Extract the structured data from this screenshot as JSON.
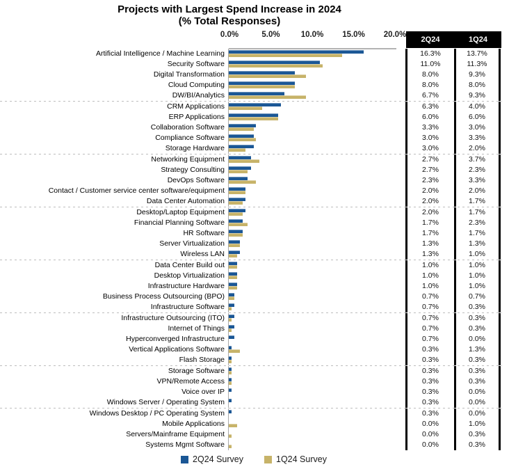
{
  "title": {
    "line1": "Projects with Largest Spend Increase in 2024",
    "line2": "(% Total Responses)"
  },
  "table": {
    "headers": [
      "2Q24",
      "1Q24"
    ]
  },
  "legend": {
    "items": [
      {
        "label": "2Q24 Survey",
        "color": "#1B5795"
      },
      {
        "label": "1Q24 Survey",
        "color": "#C7B369"
      }
    ]
  },
  "colors": {
    "bar_2q24": "#1B5795",
    "bar_1q24": "#C7B369",
    "table_header_bg": "#000000",
    "table_header_text": "#FFFFFF",
    "axis_line": "#A8A8A8",
    "separator": "#BDBDBD"
  },
  "chart_data": {
    "type": "bar",
    "orientation": "horizontal",
    "title": "Projects with Largest Spend Increase in 2024 (% Total Responses)",
    "xlabel": "% Total Responses",
    "ylabel": "",
    "xlim": [
      0,
      20
    ],
    "ticks": [
      "0.0%",
      "5.0%",
      "10.0%",
      "15.0%",
      "20.0%"
    ],
    "grid": false,
    "legend_position": "bottom",
    "separator_after_indices": [
      4,
      9,
      14,
      19,
      24,
      29,
      33
    ],
    "categories": [
      "Artificial Intelligence / Machine Learning",
      "Security Software",
      "Digital Transformation",
      "Cloud Computing",
      "DW/BI/Analytics",
      "CRM Applications",
      "ERP Applications",
      "Collaboration Software",
      "Compliance Software",
      "Storage Hardware",
      "Networking Equipment",
      "Strategy Consulting",
      "DevOps Software",
      "Contact / Customer service center software/equipment",
      "Data Center Automation",
      "Desktop/Laptop Equipment",
      "Financial Planning Software",
      "HR Software",
      "Server Virtualization",
      "Wireless LAN",
      "Data Center Build out",
      "Desktop Virtualization",
      "Infrastructure Hardware",
      "Business Process Outsourcing (BPO)",
      "Infrastructure Software",
      "Infrastructure Outsourcing (ITO)",
      "Internet of Things",
      "Hyperconverged Infrastructure",
      "Vertical Applications Software",
      "Flash Storage",
      "Storage Software",
      "VPN/Remote Access",
      "Voice over IP",
      "Windows Server / Operating System",
      "Windows Desktop / PC Operating System",
      "Mobile Applications",
      "Servers/Mainframe Equipment",
      "Systems Mgmt Software"
    ],
    "series": [
      {
        "name": "2Q24 Survey",
        "color": "#1B5795",
        "values": [
          16.3,
          11.0,
          8.0,
          8.0,
          6.7,
          6.3,
          6.0,
          3.3,
          3.0,
          3.0,
          2.7,
          2.7,
          2.3,
          2.0,
          2.0,
          2.0,
          1.7,
          1.7,
          1.3,
          1.3,
          1.0,
          1.0,
          1.0,
          0.7,
          0.7,
          0.7,
          0.7,
          0.7,
          0.3,
          0.3,
          0.3,
          0.3,
          0.3,
          0.3,
          0.3,
          0.0,
          0.0,
          0.0
        ]
      },
      {
        "name": "1Q24 Survey",
        "color": "#C7B369",
        "values": [
          13.7,
          11.3,
          9.3,
          8.0,
          9.3,
          4.0,
          6.0,
          3.0,
          3.3,
          2.0,
          3.7,
          2.3,
          3.3,
          2.0,
          1.7,
          1.7,
          2.3,
          1.7,
          1.3,
          1.0,
          1.0,
          1.0,
          1.0,
          0.7,
          0.3,
          0.3,
          0.3,
          0.0,
          1.3,
          0.3,
          0.3,
          0.3,
          0.0,
          0.0,
          0.0,
          1.0,
          0.3,
          0.3
        ]
      }
    ]
  }
}
